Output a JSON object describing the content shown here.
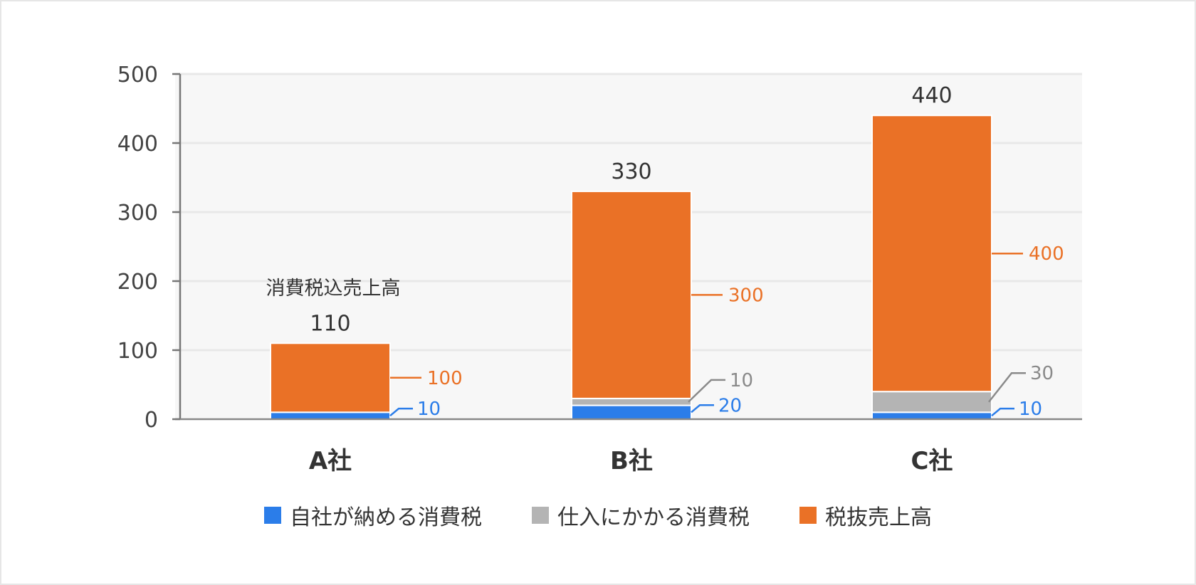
{
  "chart_data": {
    "type": "bar",
    "stacked": true,
    "categories": [
      "A社",
      "B社",
      "C社"
    ],
    "series": [
      {
        "name": "自社が納める消費税",
        "values": [
          10,
          20,
          10
        ],
        "color": "#2b7de9",
        "label_color": "#2b7de9"
      },
      {
        "name": "仕入にかかる消費税",
        "values": [
          0,
          10,
          30
        ],
        "color": "#b4b4b4",
        "label_color": "#8a8a8a"
      },
      {
        "name": "税抜売上高",
        "values": [
          100,
          300,
          400
        ],
        "color": "#ea7126",
        "label_color": "#ea7126"
      }
    ],
    "totals": [
      "110",
      "330",
      "440"
    ],
    "segment_labels": [
      [
        "10",
        "",
        "100"
      ],
      [
        "20",
        "10",
        "300"
      ],
      [
        "10",
        "30",
        "400"
      ]
    ],
    "ylim": [
      0,
      500
    ],
    "yticks": [
      "0",
      "100",
      "200",
      "300",
      "400",
      "500"
    ],
    "annotation": "消費税込売上高",
    "grid": true,
    "legend_position": "bottom"
  }
}
